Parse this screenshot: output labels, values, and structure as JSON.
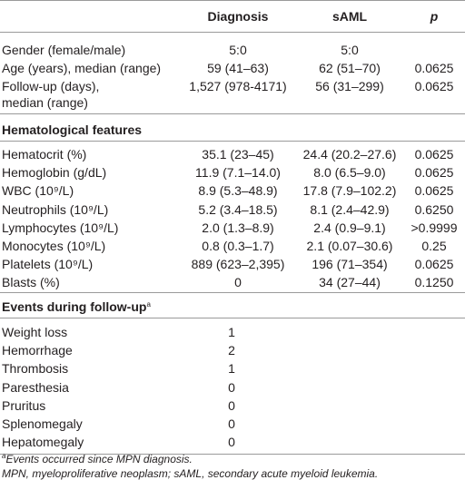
{
  "header": {
    "diagnosis": "Diagnosis",
    "saml": "sAML",
    "p": "p"
  },
  "general": [
    {
      "label": [
        "Gender (female/male)"
      ],
      "diagnosis": "5:0",
      "saml": "5:0"
    },
    {
      "label": [
        "Age (years), median (range)"
      ],
      "diagnosis": "59 (41–63)",
      "saml": "62 (51–70)",
      "p": "0.0625"
    },
    {
      "label": [
        "Follow-up (days),",
        "median (range)"
      ],
      "diagnosis": "1,527 (978-4171)",
      "saml": "56 (31–299)",
      "p": "0.0625"
    }
  ],
  "hematological": {
    "title": "Hematological features",
    "rows": [
      {
        "label": "Hematocrit (%)",
        "diagnosis": "35.1 (23–45)",
        "saml": "24.4 (20.2–27.6)",
        "p": "0.0625"
      },
      {
        "label": "Hemoglobin (g/dL)",
        "diagnosis": "11.9 (7.1–14.0)",
        "saml": "8.0 (6.5–9.0)",
        "p": "0.0625"
      },
      {
        "label": "WBC (10⁹/L)",
        "diagnosis": "8.9 (5.3–48.9)",
        "saml": "17.8 (7.9–102.2)",
        "p": "0.0625"
      },
      {
        "label": "Neutrophils (10⁹/L)",
        "diagnosis": "5.2 (3.4–18.5)",
        "saml": "8.1 (2.4–42.9)",
        "p": "0.6250"
      },
      {
        "label": "Lymphocytes (10⁹/L)",
        "diagnosis": "2.0 (1.3–8.9)",
        "saml": "2.4 (0.9–9.1)",
        "p": ">0.9999"
      },
      {
        "label": "Monocytes (10⁹/L)",
        "diagnosis": "0.8 (0.3–1.7)",
        "saml": "2.1 (0.07–30.6)",
        "p": "0.25"
      },
      {
        "label": "Platelets (10⁹/L)",
        "diagnosis": "889 (623–2,395)",
        "saml": "196 (71–354)",
        "p": "0.0625"
      },
      {
        "label": "Blasts (%)",
        "diagnosis": "0",
        "saml": "34 (27–44)",
        "p": "0.1250"
      }
    ]
  },
  "events": {
    "title": "Events during follow-up",
    "title_sup": "a",
    "rows": [
      {
        "label": "Weight loss",
        "count": "1"
      },
      {
        "label": "Hemorrhage",
        "count": "2"
      },
      {
        "label": "Thrombosis",
        "count": "1"
      },
      {
        "label": "Paresthesia",
        "count": "0"
      },
      {
        "label": "Pruritus",
        "count": "0"
      },
      {
        "label": "Splenomegaly",
        "count": "0"
      },
      {
        "label": "Hepatomegaly",
        "count": "0"
      }
    ]
  },
  "footnotes": [
    {
      "sup": "a",
      "text": "Events occurred since MPN diagnosis."
    },
    {
      "text": "MPN, myeloproliferative neoplasm; sAML, secondary acute myeloid leukemia."
    }
  ]
}
